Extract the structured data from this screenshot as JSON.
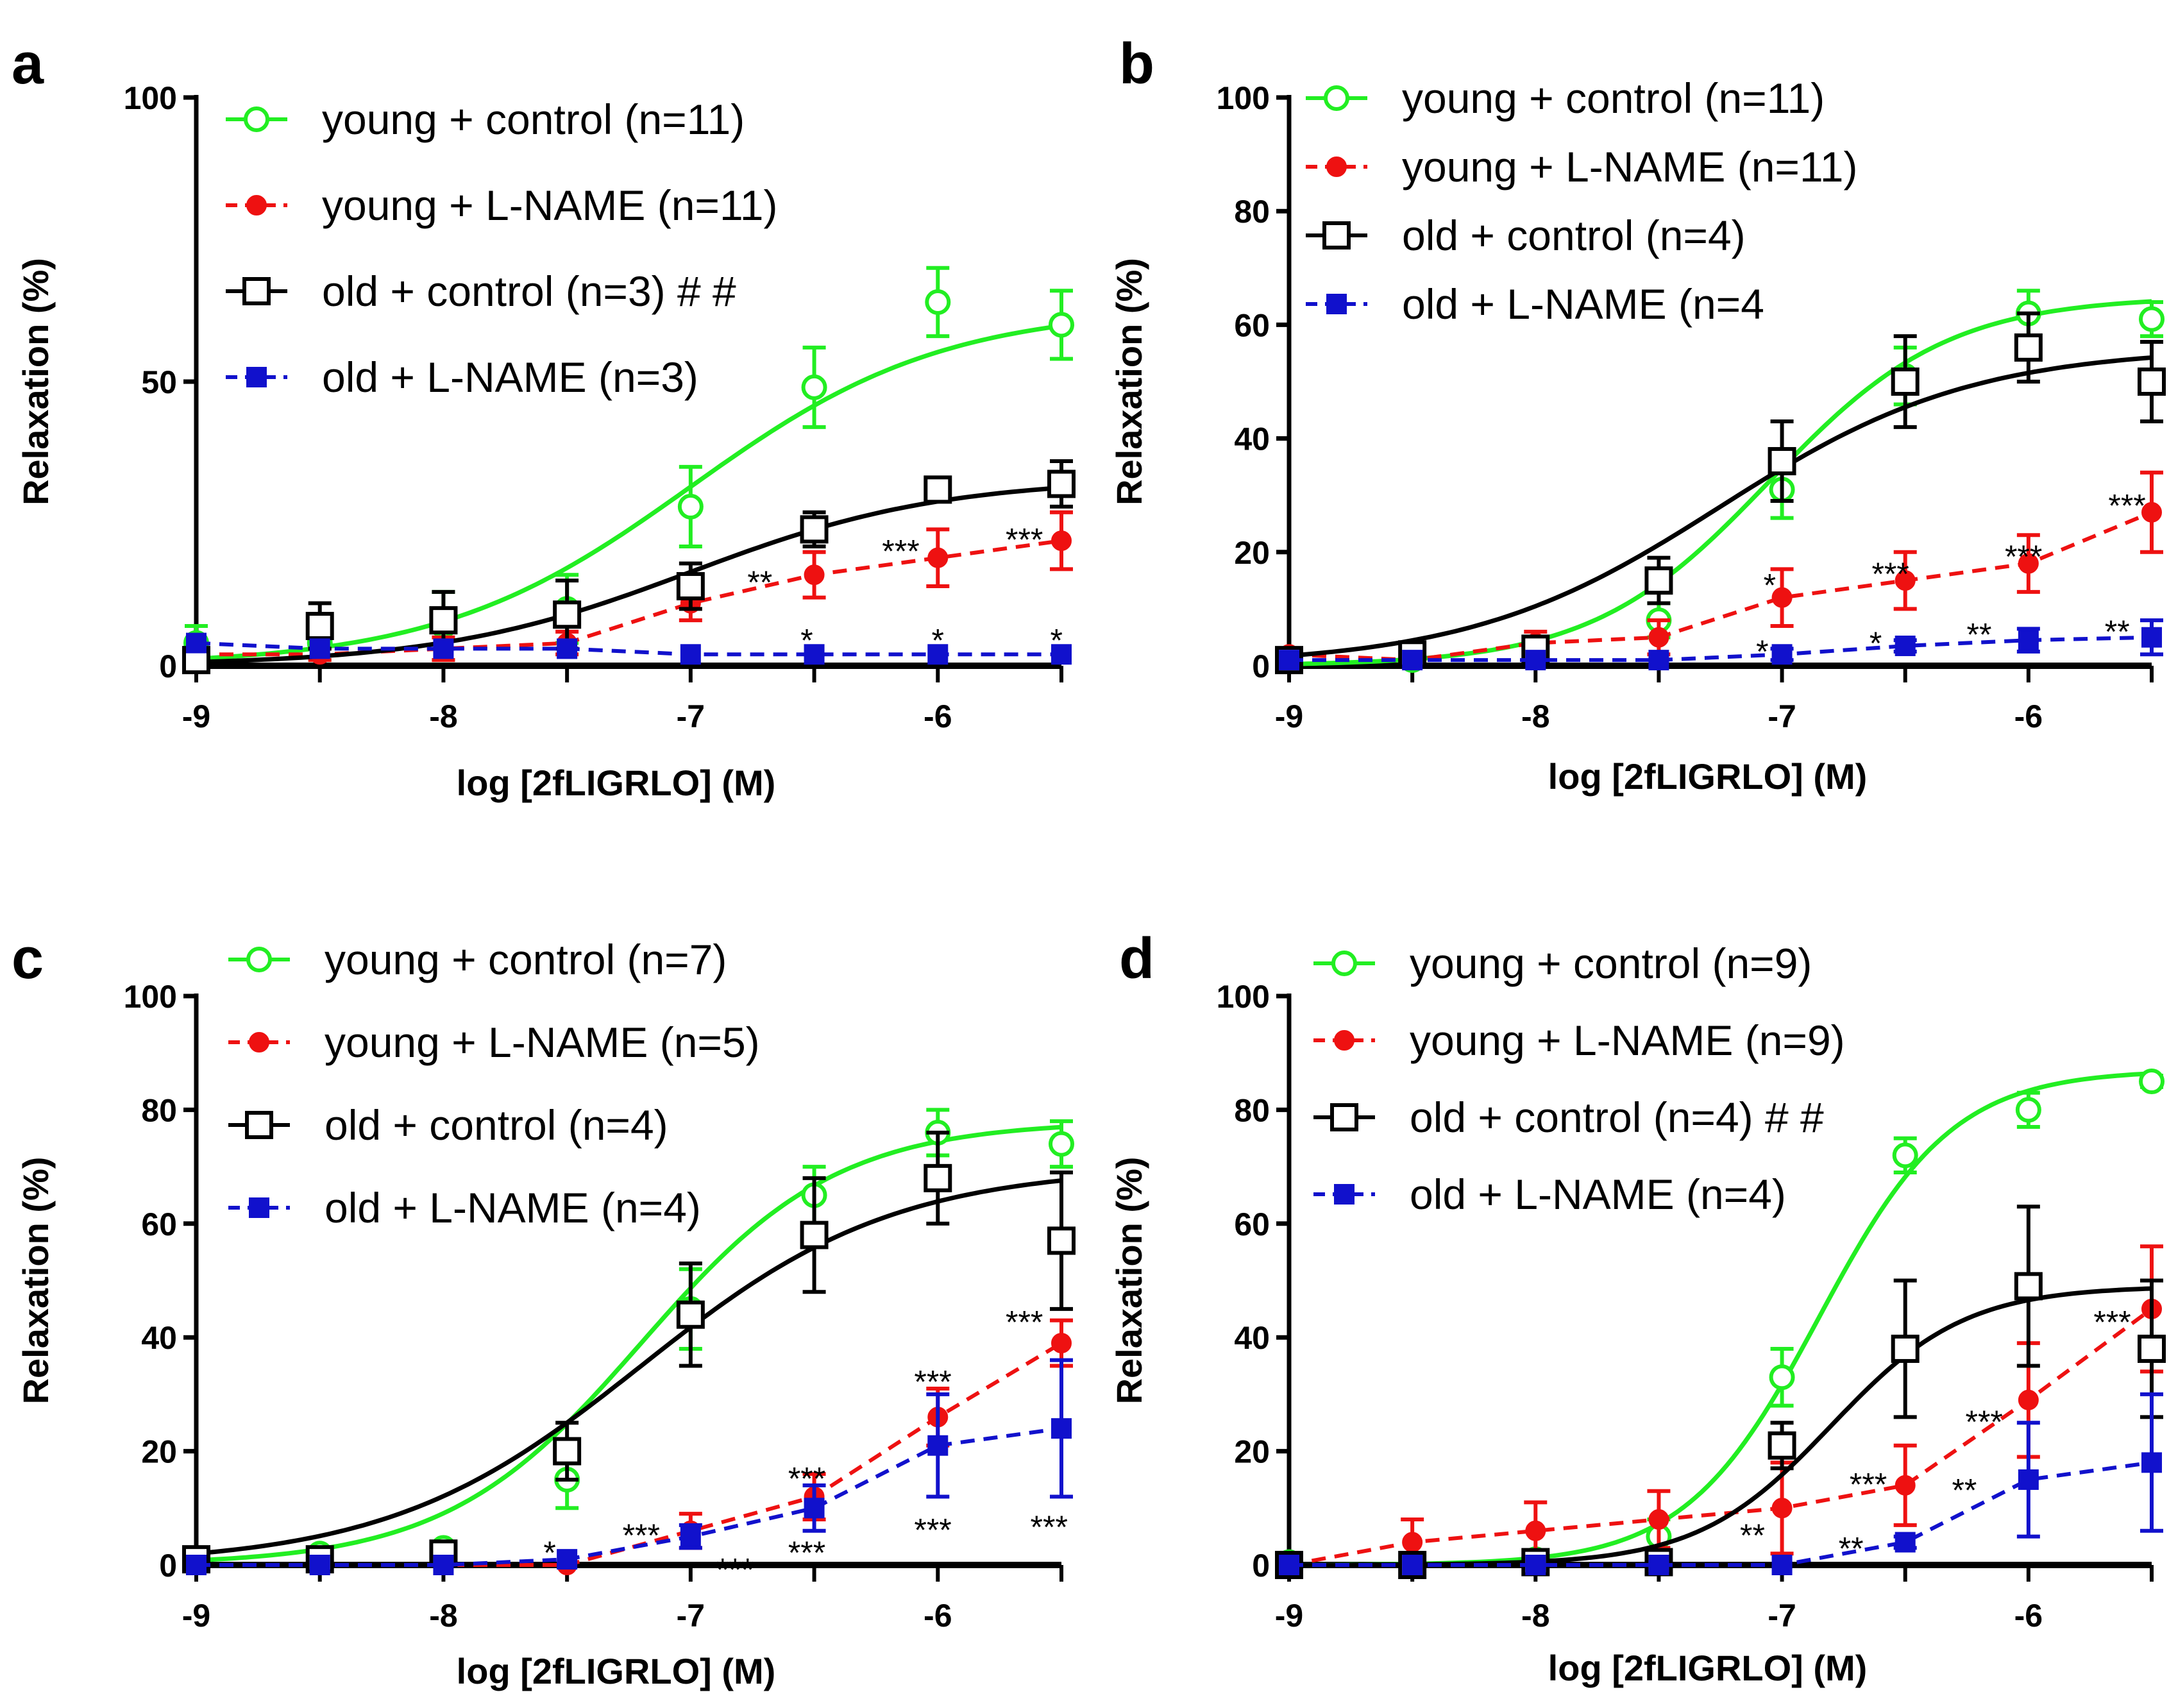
{
  "colors": {
    "young_control": "#22ee22",
    "young_lname": "#ee1111",
    "old_control": "#000000",
    "old_lname": "#1111cc"
  },
  "chart_data": [
    {
      "panel": "a",
      "type": "line",
      "xlabel": "log [2fLIGRLO] (M)",
      "ylabel": "Relaxation (%)",
      "xlim": [
        -9,
        -5.5
      ],
      "ylim": [
        0,
        100
      ],
      "x_ticks": [
        -9,
        -8,
        -7,
        -6
      ],
      "x_tick_labels": [
        "-9",
        "-8",
        "-7",
        "-6"
      ],
      "y_ticks": [
        0,
        50,
        100
      ],
      "y_tick_labels": [
        "0",
        "50",
        "100"
      ],
      "x": [
        -9,
        -8.5,
        -8,
        -7.5,
        -7,
        -6.5,
        -6,
        -5.5
      ],
      "series": [
        {
          "key": "young_control",
          "name": "young + control  (n=11)",
          "marker": "circle-open",
          "line": "solid",
          "values": [
            4,
            4,
            7,
            10,
            28,
            49,
            64,
            60
          ],
          "errors": [
            3,
            3,
            6,
            6,
            7,
            7,
            6,
            6
          ],
          "fit": {
            "bottom": 0,
            "top": 63,
            "ec50": -7.0,
            "hill": 0.85
          }
        },
        {
          "key": "young_lname",
          "name": "young + L-NAME (n=11)",
          "marker": "circle-filled",
          "line": "dashed",
          "values": [
            2,
            2,
            3,
            4,
            11,
            16,
            19,
            22
          ],
          "errors": [
            1,
            1,
            2,
            2,
            3,
            4,
            5,
            5
          ]
        },
        {
          "key": "old_control",
          "name": "old + control  (n=3) # #",
          "marker": "square-open",
          "line": "solid",
          "values": [
            1,
            7,
            8,
            9,
            14,
            24,
            31,
            32
          ],
          "errors": [
            1,
            4,
            5,
            6,
            4,
            3,
            2,
            4
          ],
          "fit": {
            "bottom": 0,
            "top": 33,
            "ec50": -7.0,
            "hill": 0.85
          }
        },
        {
          "key": "old_lname",
          "name": "old + L-NAME (n=3)",
          "marker": "square-filled",
          "line": "dashed",
          "values": [
            4,
            3,
            3,
            3,
            2,
            2,
            2,
            2
          ],
          "errors": [
            0.5,
            0.5,
            0.5,
            0.5,
            0.5,
            0.5,
            0.5,
            0.5
          ]
        }
      ],
      "annotations": [
        {
          "text": "**",
          "x": -6.72,
          "y": 15
        },
        {
          "text": "***",
          "x": -6.15,
          "y": 20.5
        },
        {
          "text": "***",
          "x": -5.65,
          "y": 22.5
        },
        {
          "text": "*",
          "x": -6.53,
          "y": 4.8
        },
        {
          "text": "*",
          "x": -6.0,
          "y": 4.8
        },
        {
          "text": "*",
          "x": -5.52,
          "y": 4.8
        }
      ]
    },
    {
      "panel": "b",
      "type": "line",
      "xlabel": "log [2fLIGRLO] (M)",
      "ylabel": "Relaxation (%)",
      "xlim": [
        -9,
        -5.5
      ],
      "ylim": [
        0,
        100
      ],
      "x_ticks": [
        -9,
        -8,
        -7,
        -6
      ],
      "x_tick_labels": [
        "-9",
        "-8",
        "-7",
        "-6"
      ],
      "y_ticks": [
        0,
        20,
        40,
        60,
        80,
        100
      ],
      "y_tick_labels": [
        "0",
        "20",
        "40",
        "60",
        "80",
        "100"
      ],
      "x": [
        -9,
        -8.5,
        -8,
        -7.5,
        -7,
        -6.5,
        -6,
        -5.5
      ],
      "series": [
        {
          "key": "young_control",
          "name": "young + control (n=11)",
          "marker": "circle-open",
          "line": "solid",
          "values": [
            1,
            1,
            2,
            8,
            31,
            51,
            62,
            61
          ],
          "errors": [
            1,
            1,
            1,
            3,
            5,
            5,
            4,
            3
          ],
          "fit": {
            "bottom": 0,
            "top": 65,
            "ec50": -7.05,
            "hill": 1.2
          }
        },
        {
          "key": "young_lname",
          "name": "young  + L-NAME  (n=11)",
          "marker": "circle-filled",
          "line": "dashed",
          "values": [
            2,
            1,
            4,
            5,
            12,
            15,
            18,
            27
          ],
          "errors": [
            1,
            1,
            2,
            3,
            5,
            5,
            5,
            7
          ]
        },
        {
          "key": "old_control",
          "name": "old  + control (n=4)",
          "marker": "square-open",
          "line": "solid",
          "values": [
            1,
            2,
            3,
            15,
            36,
            50,
            56,
            50
          ],
          "errors": [
            1,
            1,
            2,
            4,
            7,
            8,
            6,
            7
          ],
          "fit": {
            "bottom": 0,
            "top": 56,
            "ec50": -7.25,
            "hill": 0.85
          }
        },
        {
          "key": "old_lname",
          "name": "old + L-NAME (n=4",
          "marker": "square-filled",
          "line": "dashed",
          "values": [
            1,
            1,
            1,
            1,
            2,
            3.5,
            4.5,
            5
          ],
          "errors": [
            0.5,
            0.5,
            0.5,
            0.5,
            1,
            1,
            2,
            3
          ]
        }
      ],
      "annotations": [
        {
          "text": "*",
          "x": -7.05,
          "y": 14.5
        },
        {
          "text": "***",
          "x": -6.56,
          "y": 16.5
        },
        {
          "text": "***",
          "x": -6.02,
          "y": 19.5
        },
        {
          "text": "***",
          "x": -5.6,
          "y": 28.5
        },
        {
          "text": "*",
          "x": -7.08,
          "y": 2.8
        },
        {
          "text": "*",
          "x": -6.62,
          "y": 4.3
        },
        {
          "text": "**",
          "x": -6.2,
          "y": 5.8
        },
        {
          "text": "**",
          "x": -5.64,
          "y": 6.3
        }
      ]
    },
    {
      "panel": "c",
      "type": "line",
      "xlabel": "log [2fLIGRLO] (M)",
      "ylabel": "Relaxation (%)",
      "xlim": [
        -9,
        -5.5
      ],
      "ylim": [
        0,
        100
      ],
      "x_ticks": [
        -9,
        -8,
        -7,
        -6
      ],
      "x_tick_labels": [
        "-9",
        "-8",
        "-7",
        "-6"
      ],
      "y_ticks": [
        0,
        20,
        40,
        60,
        80,
        100
      ],
      "y_tick_labels": [
        "0",
        "20",
        "40",
        "60",
        "80",
        "100"
      ],
      "x": [
        -9,
        -8.5,
        -8,
        -7.5,
        -7,
        -6.5,
        -6,
        -5.5
      ],
      "series": [
        {
          "key": "young_control",
          "name": "young + control (n=7)",
          "marker": "circle-open",
          "line": "solid",
          "values": [
            1,
            2,
            3,
            15,
            45,
            65,
            76,
            74
          ],
          "errors": [
            1,
            1,
            1,
            5,
            7,
            5,
            4,
            4
          ],
          "fit": {
            "bottom": 0,
            "top": 78,
            "ec50": -7.2,
            "hill": 1.1
          }
        },
        {
          "key": "young_lname",
          "name": "young + L-NAME (n=5)",
          "marker": "circle-filled",
          "line": "dashed",
          "values": [
            0,
            0,
            0,
            0,
            6,
            12,
            26,
            39
          ],
          "errors": [
            0.5,
            0.5,
            0.5,
            0.5,
            3,
            4,
            5,
            4
          ]
        },
        {
          "key": "old_control",
          "name": "old + control (n=4)",
          "marker": "square-open",
          "line": "solid",
          "values": [
            1,
            1,
            2,
            20,
            44,
            58,
            68,
            57
          ],
          "errors": [
            1,
            1,
            1,
            5,
            9,
            10,
            8,
            12
          ],
          "fit": {
            "bottom": 0,
            "top": 70,
            "ec50": -7.2,
            "hill": 0.85
          }
        },
        {
          "key": "old_lname",
          "name": "old + L-NAME (n=4)",
          "marker": "square-filled",
          "line": "dashed",
          "values": [
            0,
            0,
            0,
            1,
            5,
            10,
            21,
            24
          ],
          "errors": [
            0.5,
            0.5,
            0.5,
            0.5,
            2,
            4,
            9,
            12
          ]
        }
      ],
      "annotations": [
        {
          "text": "*",
          "x": -7.57,
          "y": 2.5
        },
        {
          "text": "***",
          "x": -7.2,
          "y": 5.5
        },
        {
          "text": "***",
          "x": -6.82,
          "y": -0.5
        },
        {
          "text": "***",
          "x": -6.53,
          "y": 15.5
        },
        {
          "text": "***",
          "x": -6.53,
          "y": 2.5
        },
        {
          "text": "***",
          "x": -6.02,
          "y": 32.5
        },
        {
          "text": "***",
          "x": -6.02,
          "y": 6.5
        },
        {
          "text": "***",
          "x": -5.65,
          "y": 43
        },
        {
          "text": "***",
          "x": -5.55,
          "y": 7
        }
      ]
    },
    {
      "panel": "d",
      "type": "line",
      "xlabel": "log [2fLIGRLO] (M)",
      "ylabel": "Relaxation (%)",
      "xlim": [
        -9,
        -5.5
      ],
      "ylim": [
        0,
        100
      ],
      "x_ticks": [
        -9,
        -8,
        -7,
        -6
      ],
      "x_tick_labels": [
        "-9",
        "-8",
        "-7",
        "-6"
      ],
      "y_ticks": [
        0,
        20,
        40,
        60,
        80,
        100
      ],
      "y_tick_labels": [
        "0",
        "20",
        "40",
        "60",
        "80",
        "100"
      ],
      "x": [
        -9,
        -8.5,
        -8,
        -7.5,
        -7,
        -6.5,
        -6,
        -5.5
      ],
      "series": [
        {
          "key": "young_control",
          "name": "young  + control  (n=9)",
          "marker": "circle-open",
          "line": "solid",
          "values": [
            0.5,
            0.5,
            1,
            5,
            33,
            72,
            80,
            85
          ],
          "errors": [
            0.5,
            0.5,
            1,
            3,
            5,
            3,
            3,
            1
          ],
          "fit": {
            "bottom": 0,
            "top": 87,
            "ec50": -6.85,
            "hill": 1.6
          }
        },
        {
          "key": "young_lname",
          "name": "young + L-NAME (n=9)",
          "marker": "circle-filled",
          "line": "dashed",
          "values": [
            0,
            4,
            6,
            8,
            10,
            14,
            29,
            45
          ],
          "errors": [
            0.5,
            4,
            5,
            5,
            8,
            7,
            10,
            11
          ]
        },
        {
          "key": "old_control",
          "name": "old + control (n=4) # #",
          "marker": "square-open",
          "line": "solid",
          "values": [
            0,
            0,
            0.5,
            0.5,
            21,
            38,
            49,
            38
          ],
          "errors": [
            0.5,
            0.5,
            0.5,
            0.5,
            4,
            12,
            14,
            12
          ],
          "fit": {
            "bottom": 0,
            "top": 49,
            "ec50": -6.8,
            "hill": 1.6
          }
        },
        {
          "key": "old_lname",
          "name": "old + L-NAME  (n=4)",
          "marker": "square-filled",
          "line": "dashed",
          "values": [
            0,
            0,
            0,
            0,
            0,
            4,
            15,
            18
          ],
          "errors": [
            0.5,
            0.5,
            0.5,
            0.5,
            0.5,
            1,
            10,
            12
          ]
        }
      ],
      "annotations": [
        {
          "text": "**",
          "x": -7.12,
          "y": 5.5
        },
        {
          "text": "***",
          "x": -6.65,
          "y": 14.5
        },
        {
          "text": "***",
          "x": -6.18,
          "y": 25.5
        },
        {
          "text": "***",
          "x": -5.66,
          "y": 43
        },
        {
          "text": "**",
          "x": -6.72,
          "y": 3.2
        },
        {
          "text": "**",
          "x": -6.26,
          "y": 13.5
        }
      ]
    }
  ],
  "legends": [
    [
      {
        "key": "young_control",
        "label": "young + control  (n=11)"
      },
      {
        "key": "young_lname",
        "label": "young + L-NAME (n=11)"
      },
      {
        "key": "old_control",
        "label": "old + control  (n=3) # #"
      },
      {
        "key": "old_lname",
        "label": "old + L-NAME (n=3)"
      }
    ],
    [
      {
        "key": "young_control",
        "label": "young + control (n=11)"
      },
      {
        "key": "young_lname",
        "label": "young  + L-NAME  (n=11)"
      },
      {
        "key": "old_control",
        "label": "old  + control (n=4)"
      },
      {
        "key": "old_lname",
        "label": "old + L-NAME (n=4"
      }
    ],
    [
      {
        "key": "young_control",
        "label": "young + control (n=7)"
      },
      {
        "key": "young_lname",
        "label": "young + L-NAME (n=5)"
      },
      {
        "key": "old_control",
        "label": "old + control (n=4)"
      },
      {
        "key": "old_lname",
        "label": "old + L-NAME (n=4)"
      }
    ],
    [
      {
        "key": "young_control",
        "label": "young  + control  (n=9)"
      },
      {
        "key": "young_lname",
        "label": "young + L-NAME (n=9)"
      },
      {
        "key": "old_control",
        "label": "old + control (n=4) # #"
      },
      {
        "key": "old_lname",
        "label": "old + L-NAME  (n=4)"
      }
    ]
  ]
}
